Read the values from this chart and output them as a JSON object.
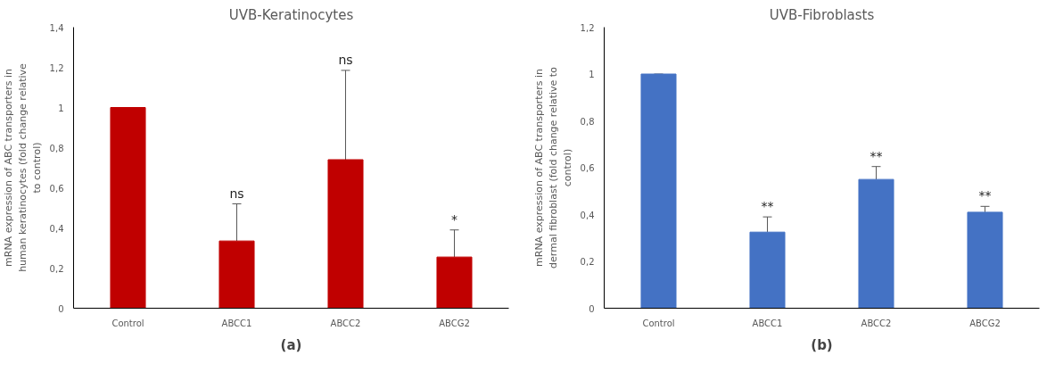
{
  "chart_data": [
    {
      "type": "bar",
      "title": "UVB-Keratinocytes",
      "ylabel": "mRNA expression of ABC transporters in human keratinocytes (fold change relative to control)",
      "categories": [
        "Control",
        "ABCC1",
        "ABCC2",
        "ABCG2"
      ],
      "values": [
        1.0,
        0.335,
        0.74,
        0.255
      ],
      "color": "#c00000",
      "errors": [
        [
          1.0,
          1.0
        ],
        [
          0.335,
          0.52
        ],
        [
          0.74,
          1.185
        ],
        [
          0.255,
          0.39
        ]
      ],
      "ylim": [
        0,
        1.4
      ],
      "yticks": [
        0,
        {
          "value": 0.2,
          "label": "0,2"
        },
        {
          "value": 0.4,
          "label": "0,4"
        },
        {
          "value": 0.6,
          "label": "0,6"
        },
        {
          "value": 0.8,
          "label": "0,8"
        },
        1,
        {
          "value": 1.2,
          "label": "1,2"
        },
        {
          "value": 1.4,
          "label": "1,4"
        }
      ],
      "grid": false,
      "annotations": [
        {
          "text": "ns",
          "x": "ABCC1",
          "y": 0.52
        },
        {
          "text": "ns",
          "x": "ABCC2",
          "y": 1.185
        },
        {
          "text": "*",
          "x": "ABCG2",
          "y": 0.39
        },
        "(a)"
      ]
    },
    {
      "type": "bar",
      "title": "UVB-Fibroblasts",
      "ylabel": "mRNA expression of ABC transporters in dermal fibroblast (fold change relative to control)",
      "categories": [
        "Control",
        "ABCC1",
        "ABCC2",
        "ABCG2"
      ],
      "values": [
        1.0,
        0.325,
        0.55,
        0.41
      ],
      "color": "#4472c4",
      "errors": [
        [
          1.0,
          1.0
        ],
        [
          0.325,
          0.39
        ],
        [
          0.55,
          0.605
        ],
        [
          0.41,
          0.435
        ]
      ],
      "ylim": [
        0,
        1.2
      ],
      "yticks": [
        0,
        {
          "value": 0.2,
          "label": "0,2"
        },
        {
          "value": 0.4,
          "label": "0,4"
        },
        {
          "value": 0.6,
          "label": "0,6"
        },
        {
          "value": 0.8,
          "label": "0,8"
        },
        1,
        {
          "value": 1.2,
          "label": "1,2"
        }
      ],
      "grid": false,
      "annotations": [
        {
          "text": "**",
          "x": "ABCC1",
          "y": 0.39
        },
        {
          "text": "**",
          "x": "ABCC2",
          "y": 0.605
        },
        {
          "text": "**",
          "x": "ABCG2",
          "y": 0.435
        },
        "(b)"
      ]
    }
  ]
}
